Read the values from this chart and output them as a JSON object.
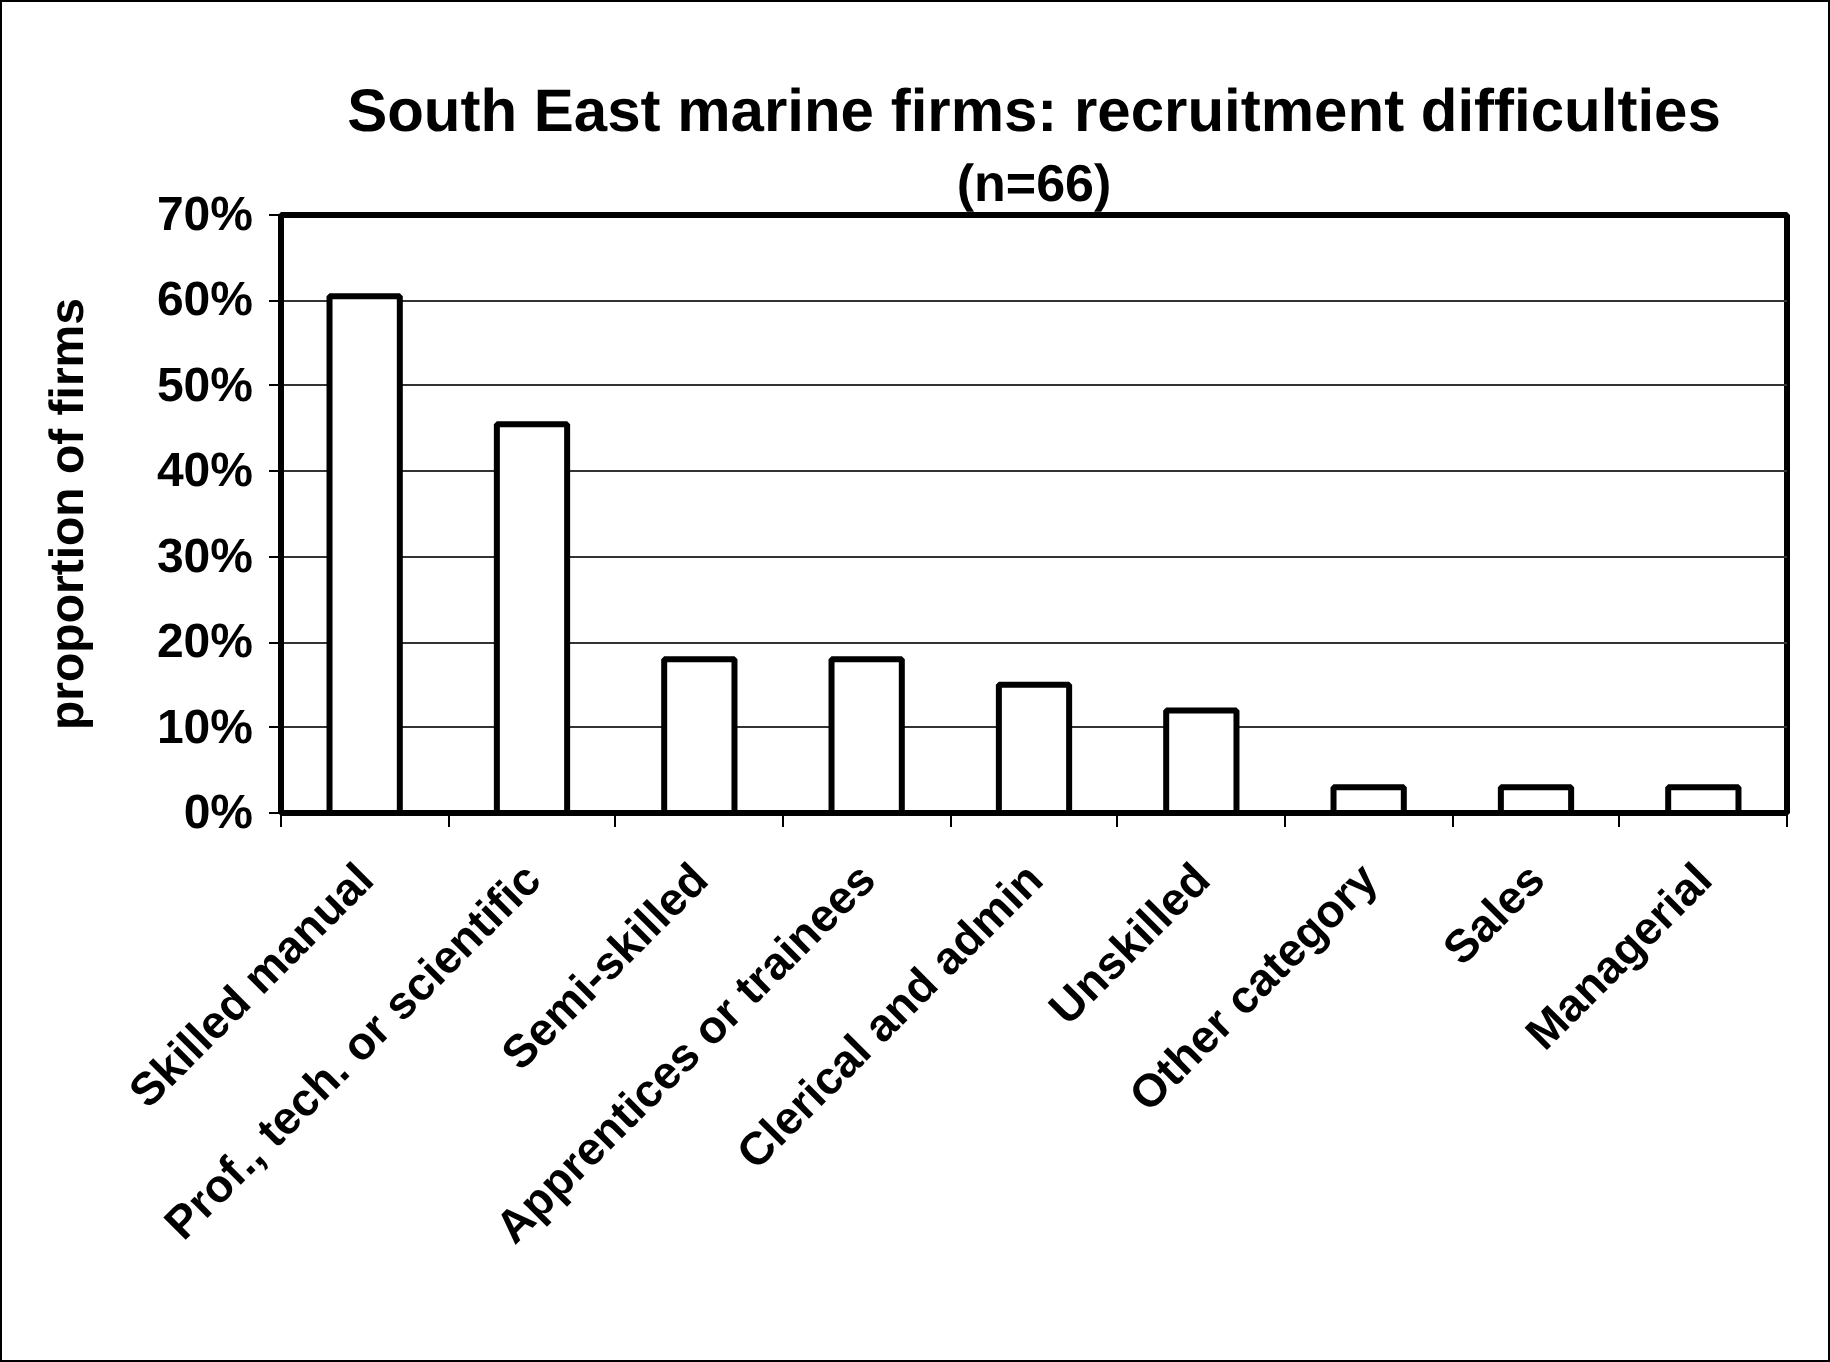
{
  "chart_data": {
    "type": "bar",
    "title": "South East marine firms: recruitment difficulties",
    "subtitle": "(n=66)",
    "ylabel": "proportion of firms",
    "categories": [
      "Skilled manual",
      "Prof., tech. or scientific",
      "Semi-skilled",
      "Apprentices or trainees",
      "Clerical and admin",
      "Unskilled",
      "Other category",
      "Sales",
      "Managerial"
    ],
    "values": [
      60.5,
      45.5,
      18,
      18,
      15,
      12,
      3,
      3,
      3
    ],
    "color": "#ffffff",
    "ylim": [
      0,
      70
    ],
    "yticks": [
      {
        "value": 0,
        "label": "0%"
      },
      {
        "value": 10,
        "label": "10%"
      },
      {
        "value": 20,
        "label": "20%"
      },
      {
        "value": 30,
        "label": "30%"
      },
      {
        "value": 40,
        "label": "40%"
      },
      {
        "value": 50,
        "label": "50%"
      },
      {
        "value": 60,
        "label": "60%"
      },
      {
        "value": 70,
        "label": "70%"
      }
    ],
    "grid": "y"
  }
}
